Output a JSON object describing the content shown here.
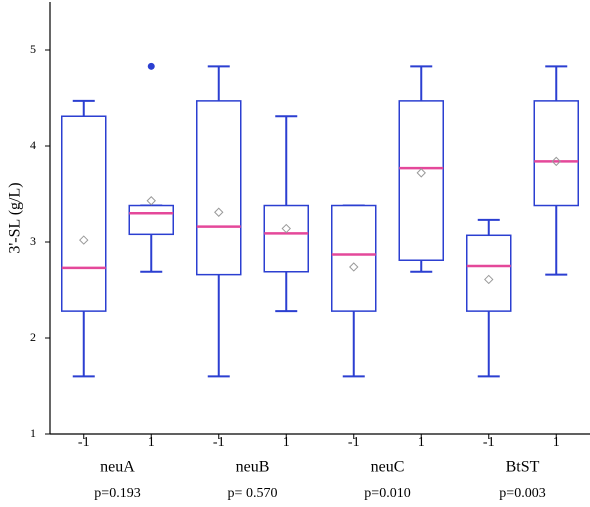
{
  "chart_data": {
    "type": "box",
    "y_label": "3'-SL (g/L)",
    "ylim": [
      1,
      5.5
    ],
    "yticks": [
      1,
      2,
      3,
      4,
      5
    ],
    "categories": [
      "-1",
      "1",
      "-1",
      "1",
      "-1",
      "1",
      "-1",
      "1"
    ],
    "groups": [
      {
        "name": "neuA",
        "p": "p=0.193"
      },
      {
        "name": "neuB",
        "p": "p= 0.570"
      },
      {
        "name": "neuC",
        "p": "p=0.010"
      },
      {
        "name": "BtST",
        "p": "p=0.003"
      }
    ],
    "box_color": "#2b3fd1",
    "median_color": "#e4489a",
    "mean_color": "#999999",
    "boxes": [
      {
        "min": 1.6,
        "q1": 2.28,
        "median": 2.73,
        "q3": 4.31,
        "max": 4.47,
        "mean": 3.02,
        "outliers": []
      },
      {
        "min": 2.69,
        "q1": 3.08,
        "median": 3.3,
        "q3": 3.38,
        "max": 3.38,
        "mean": 3.43,
        "outliers": [
          4.83
        ]
      },
      {
        "min": 1.6,
        "q1": 2.66,
        "median": 3.16,
        "q3": 4.47,
        "max": 4.83,
        "mean": 3.31,
        "outliers": []
      },
      {
        "min": 2.28,
        "q1": 2.69,
        "median": 3.09,
        "q3": 3.38,
        "max": 4.31,
        "mean": 3.14,
        "outliers": []
      },
      {
        "min": 1.6,
        "q1": 2.28,
        "median": 2.87,
        "q3": 3.38,
        "max": 3.38,
        "mean": 2.74,
        "outliers": []
      },
      {
        "min": 2.69,
        "q1": 2.81,
        "median": 3.77,
        "q3": 4.47,
        "max": 4.83,
        "mean": 3.72,
        "outliers": []
      },
      {
        "min": 1.6,
        "q1": 2.28,
        "median": 2.75,
        "q3": 3.07,
        "max": 3.23,
        "mean": 2.61,
        "outliers": []
      },
      {
        "min": 2.66,
        "q1": 3.38,
        "median": 3.84,
        "q3": 4.47,
        "max": 4.83,
        "mean": 3.84,
        "outliers": []
      }
    ]
  }
}
